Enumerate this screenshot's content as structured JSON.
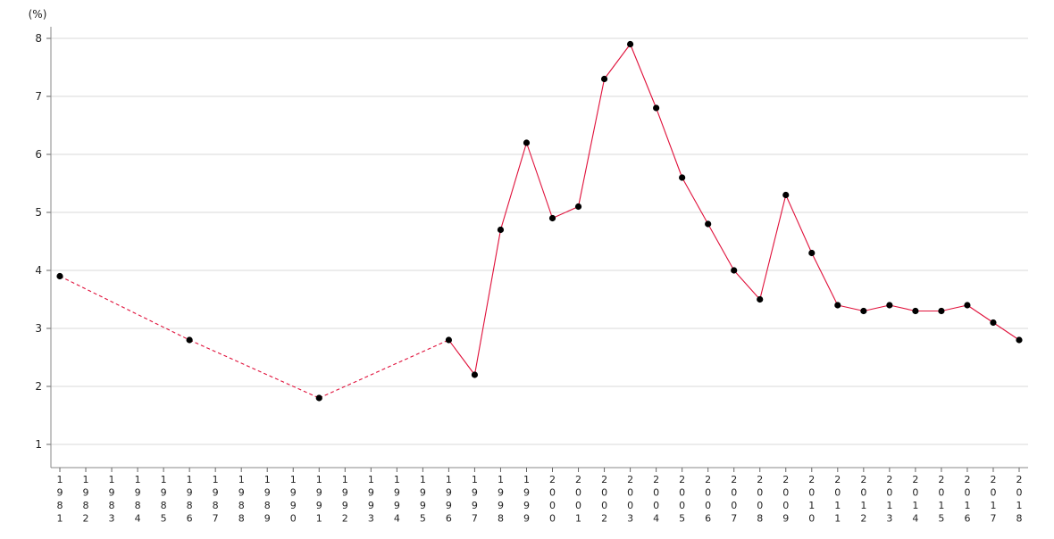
{
  "chart_data": {
    "type": "line",
    "title": "",
    "xlabel": "",
    "ylabel": "(%)",
    "ylim": [
      0.6,
      8.2
    ],
    "yticks": [
      1,
      2,
      3,
      4,
      5,
      6,
      7,
      8
    ],
    "grid": true,
    "legend": "none",
    "categories": [
      "1981",
      "1982",
      "1983",
      "1984",
      "1985",
      "1986",
      "1987",
      "1988",
      "1989",
      "1990",
      "1991",
      "1992",
      "1993",
      "1994",
      "1995",
      "1996",
      "1997",
      "1998",
      "1999",
      "2000",
      "2001",
      "2002",
      "2003",
      "2004",
      "2005",
      "2006",
      "2007",
      "2008",
      "2009",
      "2010",
      "2011",
      "2012",
      "2013",
      "2014",
      "2015",
      "2016",
      "2017",
      "2018"
    ],
    "series": [
      {
        "values": [
          3.9,
          null,
          null,
          null,
          null,
          2.8,
          null,
          null,
          null,
          null,
          1.8,
          null,
          null,
          null,
          null,
          2.8,
          2.2,
          4.7,
          6.2,
          4.9,
          5.1,
          7.3,
          7.9,
          6.8,
          5.6,
          4.8,
          4.0,
          3.5,
          5.3,
          4.3,
          3.4,
          3.3,
          3.4,
          3.3,
          3.3,
          3.4,
          3.1,
          2.8
        ],
        "color": "#e0103a",
        "marker_color": "#000000",
        "dashed_across_gaps": true
      }
    ]
  }
}
